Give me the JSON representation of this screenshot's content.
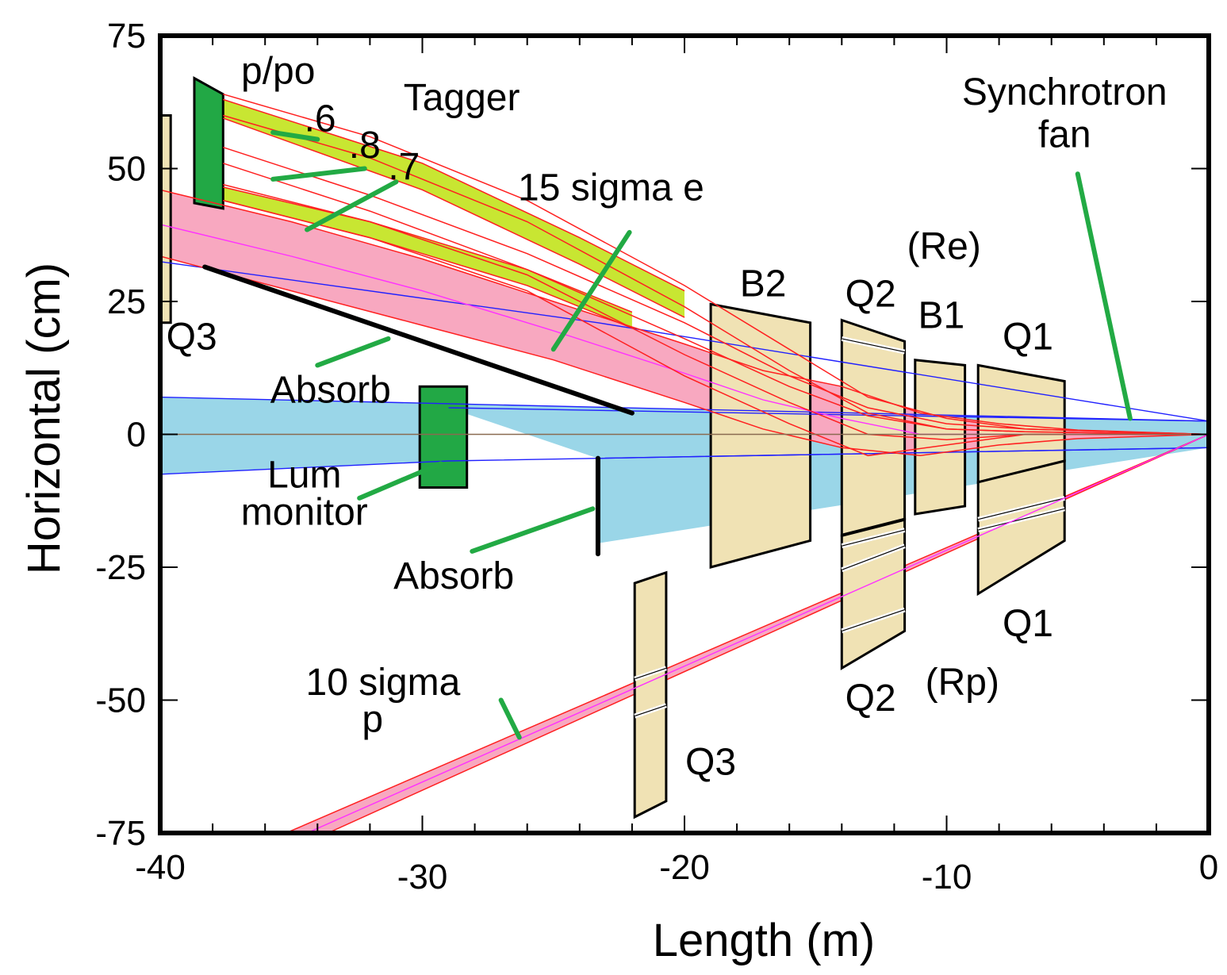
{
  "chart_data": {
    "type": "diagram",
    "xlabel": "Length (m)",
    "ylabel": "Horizontal (cm)",
    "xlim": [
      -40,
      0
    ],
    "ylim": [
      -75,
      75
    ],
    "xticks": [
      {
        "value": -40,
        "label": "-40"
      },
      {
        "value": -30,
        "label": "-30"
      },
      {
        "value": -20,
        "label": "-20"
      },
      {
        "value": -10,
        "label": "-10"
      },
      {
        "value": 0,
        "label": "0"
      }
    ],
    "yticks": [
      {
        "value": 75,
        "label": "75"
      },
      {
        "value": 50,
        "label": "50"
      },
      {
        "value": 25,
        "label": "25"
      },
      {
        "value": 0,
        "label": "0"
      },
      {
        "value": -25,
        "label": "-25"
      },
      {
        "value": -50,
        "label": "-50"
      },
      {
        "value": -75,
        "label": "-75"
      }
    ],
    "colors": {
      "magnet": "#f0e2b4",
      "detector": "#22a845",
      "electron_envelope": "#f8a8c0",
      "synchrotron_fan": "#9ad6e8",
      "momentum_band": "#c8e632",
      "trajectory": "#ff2020",
      "orbit": "#ff30ff",
      "fan_edge": "#2020ff",
      "leader": "#22aa44"
    },
    "magnets": [
      {
        "name": "Q3 tagger",
        "poly": [
          [
            -40.3,
            60
          ],
          [
            -39.6,
            60
          ],
          [
            -39.6,
            21
          ],
          [
            -40.3,
            21
          ]
        ]
      },
      {
        "name": "B2",
        "poly": [
          [
            -19.0,
            24.5
          ],
          [
            -15.2,
            21
          ],
          [
            -15.2,
            -20
          ],
          [
            -19.0,
            -25
          ]
        ]
      },
      {
        "name": "Q2 e",
        "poly": [
          [
            -14.0,
            21.5
          ],
          [
            -11.6,
            17.5
          ],
          [
            -11.6,
            -16
          ],
          [
            -14.0,
            -19
          ]
        ]
      },
      {
        "name": "Q2 p",
        "poly": [
          [
            -14.0,
            -19
          ],
          [
            -11.6,
            -16
          ],
          [
            -11.6,
            -37
          ],
          [
            -14.0,
            -44
          ]
        ]
      },
      {
        "name": "B1",
        "poly": [
          [
            -11.2,
            14
          ],
          [
            -9.3,
            13
          ],
          [
            -9.3,
            -13.5
          ],
          [
            -11.2,
            -15
          ]
        ]
      },
      {
        "name": "Q1 e",
        "poly": [
          [
            -8.8,
            13
          ],
          [
            -5.5,
            10
          ],
          [
            -5.5,
            -5
          ],
          [
            -8.8,
            -9
          ]
        ]
      },
      {
        "name": "Q1 p",
        "poly": [
          [
            -8.8,
            -9
          ],
          [
            -5.5,
            -5
          ],
          [
            -5.5,
            -20
          ],
          [
            -8.8,
            -30
          ]
        ]
      },
      {
        "name": "Q3 p",
        "poly": [
          [
            -21.9,
            -28
          ],
          [
            -20.7,
            -26
          ],
          [
            -20.7,
            -69
          ],
          [
            -21.9,
            -72
          ]
        ]
      }
    ],
    "detectors": [
      {
        "name": "Tagger",
        "poly": [
          [
            -38.7,
            67
          ],
          [
            -37.6,
            64
          ],
          [
            -37.6,
            42.5
          ],
          [
            -38.7,
            43.5
          ]
        ]
      },
      {
        "name": "Lum monitor",
        "poly": [
          [
            -30.1,
            9
          ],
          [
            -28.3,
            9
          ],
          [
            -28.3,
            -10
          ],
          [
            -30.1,
            -10
          ]
        ]
      }
    ],
    "absorbers": [
      {
        "name": "Absorb upper",
        "from": [
          -38.3,
          31.5
        ],
        "to": [
          -22.0,
          4
        ]
      },
      {
        "name": "Absorb lower",
        "from": [
          -23.3,
          -4.5
        ],
        "to": [
          -23.3,
          -22.5
        ]
      }
    ],
    "synchrotron_fan": [
      [
        0,
        2.5
      ],
      [
        -40,
        7
      ],
      [
        -40,
        -7.5
      ],
      [
        -29,
        -5
      ],
      [
        -29,
        5
      ],
      [
        -23.3,
        -4.5
      ],
      [
        -23.3,
        -20.5
      ],
      [
        0,
        -2.5
      ]
    ],
    "electron_envelope": {
      "upper": [
        [
          -40,
          46
        ],
        [
          -35,
          40
        ],
        [
          -30,
          33
        ],
        [
          -25,
          25
        ],
        [
          -20,
          17
        ],
        [
          -17,
          12
        ],
        [
          -14,
          9
        ],
        [
          -11,
          4
        ],
        [
          -8,
          2
        ],
        [
          -5,
          0.8
        ],
        [
          0,
          0
        ]
      ],
      "lower": [
        [
          -40,
          33.5
        ],
        [
          -35,
          27
        ],
        [
          -30,
          20.5
        ],
        [
          -25,
          14
        ],
        [
          -20,
          6
        ],
        [
          -17,
          1
        ],
        [
          -14,
          -2.5
        ],
        [
          -11,
          -4
        ],
        [
          -8,
          -2
        ],
        [
          -5,
          -0.8
        ],
        [
          0,
          0
        ]
      ],
      "center": [
        [
          -40,
          39.5
        ],
        [
          -35,
          33.5
        ],
        [
          -30,
          27
        ],
        [
          -25,
          19.5
        ],
        [
          -20,
          11.5
        ],
        [
          -17,
          6.5
        ],
        [
          -14,
          3
        ],
        [
          -11,
          0
        ],
        [
          -8,
          0
        ],
        [
          -5,
          0
        ],
        [
          0,
          0
        ]
      ]
    },
    "proton_envelope": {
      "upper": [
        [
          0,
          0
        ],
        [
          -35.2,
          -75
        ]
      ],
      "lower": [
        [
          0,
          0
        ],
        [
          -33.6,
          -75
        ]
      ],
      "center": [
        [
          0,
          0
        ],
        [
          -34.4,
          -75
        ]
      ]
    },
    "momentum_bands": [
      {
        "label": ".6",
        "upper": [
          [
            -37.6,
            63
          ],
          [
            -30,
            51
          ],
          [
            -24,
            37
          ],
          [
            -20,
            27
          ]
        ],
        "lower": [
          [
            -37.6,
            59.5
          ],
          [
            -30,
            46
          ],
          [
            -24,
            32
          ],
          [
            -20,
            22
          ]
        ]
      },
      {
        "label": ".7",
        "upper": [
          [
            -37.6,
            46.5
          ],
          [
            -32,
            40
          ],
          [
            -26,
            31
          ],
          [
            -22,
            23
          ]
        ],
        "lower": [
          [
            -37.6,
            44
          ],
          [
            -32,
            37
          ],
          [
            -26,
            28
          ],
          [
            -22,
            20
          ]
        ]
      }
    ],
    "trajectories": [
      [
        [
          -37.6,
          64
        ],
        [
          -32,
          56
        ],
        [
          -26,
          44
        ],
        [
          -20,
          28
        ],
        [
          -16,
          16
        ],
        [
          -13,
          7
        ],
        [
          -10,
          3
        ],
        [
          -7,
          1
        ],
        [
          0,
          0
        ]
      ],
      [
        [
          -37.6,
          60
        ],
        [
          -32,
          52
        ],
        [
          -26,
          40
        ],
        [
          -20,
          24
        ],
        [
          -16,
          12
        ],
        [
          -13,
          4
        ],
        [
          -10,
          1
        ],
        [
          -7,
          0.5
        ],
        [
          0,
          0
        ]
      ],
      [
        [
          -37.6,
          54
        ],
        [
          -32,
          45
        ],
        [
          -26,
          34
        ],
        [
          -20,
          21
        ],
        [
          -16,
          11
        ],
        [
          -13,
          5
        ],
        [
          -10,
          2
        ],
        [
          -7,
          1
        ],
        [
          0,
          0
        ]
      ],
      [
        [
          -37.6,
          51
        ],
        [
          -32,
          42
        ],
        [
          -26,
          31
        ],
        [
          -20,
          18
        ],
        [
          -16,
          9
        ],
        [
          -13,
          3.5
        ],
        [
          -10,
          1
        ],
        [
          -7,
          0.5
        ],
        [
          0,
          0
        ]
      ],
      [
        [
          -37.6,
          47
        ],
        [
          -32,
          40
        ],
        [
          -26,
          30
        ],
        [
          -20,
          15
        ],
        [
          -16,
          6
        ],
        [
          -13,
          0
        ],
        [
          -10,
          -1
        ],
        [
          -7,
          0
        ],
        [
          0,
          0
        ]
      ],
      [
        [
          -37.6,
          44
        ],
        [
          -32,
          37
        ],
        [
          -26,
          27
        ],
        [
          -20,
          11
        ],
        [
          -16,
          2
        ],
        [
          -13,
          -4
        ],
        [
          -10,
          -2
        ],
        [
          -7,
          0
        ],
        [
          0,
          0
        ]
      ]
    ],
    "labels": [
      {
        "text": "p/po",
        "x": -35.5,
        "y": 66,
        "size": 48
      },
      {
        "text": "Tagger",
        "x": -28.5,
        "y": 61,
        "size": 48
      },
      {
        "text": ".6",
        "x": -33.9,
        "y": 57,
        "size": 48
      },
      {
        "text": ".8",
        "x": -32.2,
        "y": 52,
        "size": 48
      },
      {
        "text": ".7",
        "x": -30.7,
        "y": 48,
        "size": 48
      },
      {
        "text": "15 sigma e",
        "x": -22.8,
        "y": 44,
        "size": 48
      },
      {
        "text": "Synchrotron",
        "x": -5.5,
        "y": 62,
        "size": 48
      },
      {
        "text": "fan",
        "x": -5.5,
        "y": 54,
        "size": 48
      },
      {
        "text": "(Re)",
        "x": -10.1,
        "y": 33,
        "size": 48
      },
      {
        "text": "B2",
        "x": -17.0,
        "y": 26,
        "size": 48
      },
      {
        "text": "Q2",
        "x": -12.9,
        "y": 24,
        "size": 48
      },
      {
        "text": "B1",
        "x": -10.2,
        "y": 20,
        "size": 48
      },
      {
        "text": "Q1",
        "x": -6.9,
        "y": 16,
        "size": 48
      },
      {
        "text": "Q3",
        "x": -38.8,
        "y": 16,
        "size": 48
      },
      {
        "text": "Absorb",
        "x": -33.5,
        "y": 6,
        "size": 48
      },
      {
        "text": "Lum",
        "x": -34.5,
        "y": -10,
        "size": 48
      },
      {
        "text": "monitor",
        "x": -34.5,
        "y": -17,
        "size": 48
      },
      {
        "text": "Absorb",
        "x": -28.8,
        "y": -29,
        "size": 48
      },
      {
        "text": "Q1",
        "x": -6.9,
        "y": -38,
        "size": 48
      },
      {
        "text": "10 sigma",
        "x": -31.5,
        "y": -49,
        "size": 48
      },
      {
        "text": "p",
        "x": -31.9,
        "y": -56,
        "size": 48
      },
      {
        "text": "Q2",
        "x": -12.9,
        "y": -52,
        "size": 48
      },
      {
        "text": "(Rp)",
        "x": -9.4,
        "y": -49,
        "size": 48
      },
      {
        "text": "Q3",
        "x": -19.0,
        "y": -64,
        "size": 48
      }
    ],
    "leaders": [
      {
        "name": "leader-6",
        "from": [
          -34,
          55.5
        ],
        "to": [
          -35.7,
          56.8
        ]
      },
      {
        "name": "leader-8",
        "from": [
          -32.2,
          50
        ],
        "to": [
          -35.7,
          48
        ]
      },
      {
        "name": "leader-7",
        "from": [
          -31.0,
          47.5
        ],
        "to": [
          -34.4,
          38.5
        ]
      },
      {
        "name": "leader-15sigma",
        "from": [
          -22.1,
          38
        ],
        "to": [
          -25.0,
          16
        ]
      },
      {
        "name": "leader-synchrotron",
        "from": [
          -5.0,
          49
        ],
        "to": [
          -3.0,
          3
        ]
      },
      {
        "name": "leader-absorb-upper",
        "from": [
          -34.0,
          13
        ],
        "to": [
          -31.3,
          18
        ]
      },
      {
        "name": "leader-lum",
        "from": [
          -32.4,
          -12
        ],
        "to": [
          -29.3,
          -5.5
        ]
      },
      {
        "name": "leader-absorb-lower",
        "from": [
          -28.1,
          -22
        ],
        "to": [
          -23.5,
          -14
        ]
      },
      {
        "name": "leader-10sigma",
        "from": [
          -27.0,
          -50
        ],
        "to": [
          -26.3,
          -57
        ]
      }
    ]
  }
}
